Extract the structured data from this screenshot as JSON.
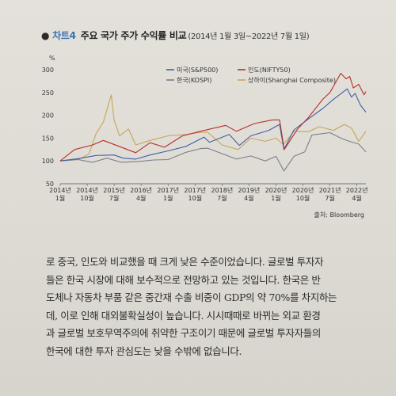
{
  "caption": {
    "bullet": "●",
    "number": "차트4",
    "title": "주요 국가 주가 수익률 비교",
    "period": "(2014년 1월 3일~2022년 7월 1일)"
  },
  "source": "출처: Bloomberg",
  "body_lines": [
    "로 중국, 인도와 비교했을 때 크게 낮은 수준이었습니다. 글로벌 투자자",
    "들은 한국 시장에 대해 보수적으로 전망하고 있는 것입니다. 한국은 반",
    "도체나 자동차 부품 같은 중간재 수출 비중이 GDP의 약 70%를 차지하는",
    "데, 이로 인해 대외불확실성이 높습니다. 시시때때로 바뀌는 외교 환경",
    "과 글로벌 보호무역주의에 취약한 구조이기 때문에 글로벌 투자자들의",
    "한국에 대한 투자 관심도는 낮을 수밖에 없습니다."
  ],
  "chart_data": {
    "type": "line",
    "title": "주요 국가 주가 수익률 비교",
    "ylabel": "%",
    "ylim": [
      50,
      300
    ],
    "yticks": [
      50,
      100,
      150,
      200,
      250,
      300
    ],
    "xlim": [
      2014.0,
      2022.5
    ],
    "xticks": [
      {
        "x": 2014.0,
        "line1": "2014년",
        "line2": "1월"
      },
      {
        "x": 2014.75,
        "line1": "2014년",
        "line2": "10월"
      },
      {
        "x": 2015.5,
        "line1": "2015년",
        "line2": "7월"
      },
      {
        "x": 2016.25,
        "line1": "2016년",
        "line2": "4월"
      },
      {
        "x": 2017.0,
        "line1": "2017년",
        "line2": "1월"
      },
      {
        "x": 2017.75,
        "line1": "2017년",
        "line2": "10월"
      },
      {
        "x": 2018.5,
        "line1": "2018년",
        "line2": "7월"
      },
      {
        "x": 2019.25,
        "line1": "2019년",
        "line2": "4월"
      },
      {
        "x": 2020.0,
        "line1": "2020년",
        "line2": "1월"
      },
      {
        "x": 2020.75,
        "line1": "2020년",
        "line2": "10월"
      },
      {
        "x": 2021.5,
        "line1": "2021년",
        "line2": "7월"
      },
      {
        "x": 2022.25,
        "line1": "2022년",
        "line2": "4월"
      }
    ],
    "grid": false,
    "legend_position": "top",
    "series": [
      {
        "name": "미국(S&P500)",
        "color": "#3f5fa8",
        "points": [
          [
            2014.0,
            100
          ],
          [
            2014.5,
            105
          ],
          [
            2015.0,
            112
          ],
          [
            2015.5,
            113
          ],
          [
            2015.75,
            106
          ],
          [
            2016.1,
            104
          ],
          [
            2016.5,
            113
          ],
          [
            2017.0,
            122
          ],
          [
            2017.5,
            132
          ],
          [
            2018.0,
            152
          ],
          [
            2018.15,
            141
          ],
          [
            2018.7,
            158
          ],
          [
            2018.98,
            134
          ],
          [
            2019.3,
            155
          ],
          [
            2019.8,
            167
          ],
          [
            2020.1,
            180
          ],
          [
            2020.22,
            125
          ],
          [
            2020.5,
            168
          ],
          [
            2020.9,
            192
          ],
          [
            2021.3,
            215
          ],
          [
            2021.6,
            235
          ],
          [
            2021.98,
            258
          ],
          [
            2022.1,
            240
          ],
          [
            2022.2,
            248
          ],
          [
            2022.35,
            222
          ],
          [
            2022.5,
            207
          ]
        ]
      },
      {
        "name": "인도(NIFTY50)",
        "color": "#b8302e",
        "points": [
          [
            2014.0,
            100
          ],
          [
            2014.4,
            125
          ],
          [
            2014.9,
            135
          ],
          [
            2015.2,
            145
          ],
          [
            2015.6,
            133
          ],
          [
            2016.1,
            118
          ],
          [
            2016.5,
            140
          ],
          [
            2016.9,
            130
          ],
          [
            2017.4,
            155
          ],
          [
            2017.9,
            165
          ],
          [
            2018.6,
            178
          ],
          [
            2018.9,
            165
          ],
          [
            2019.4,
            182
          ],
          [
            2019.9,
            190
          ],
          [
            2020.1,
            190
          ],
          [
            2020.23,
            125
          ],
          [
            2020.6,
            170
          ],
          [
            2020.9,
            195
          ],
          [
            2021.3,
            235
          ],
          [
            2021.5,
            250
          ],
          [
            2021.8,
            292
          ],
          [
            2021.95,
            280
          ],
          [
            2022.05,
            285
          ],
          [
            2022.15,
            260
          ],
          [
            2022.3,
            268
          ],
          [
            2022.45,
            245
          ],
          [
            2022.5,
            252
          ]
        ]
      },
      {
        "name": "한국(KOSPI)",
        "color": "#7b7f8a",
        "points": [
          [
            2014.0,
            100
          ],
          [
            2014.5,
            103
          ],
          [
            2014.9,
            97
          ],
          [
            2015.3,
            106
          ],
          [
            2015.7,
            97
          ],
          [
            2016.2,
            99
          ],
          [
            2016.6,
            102
          ],
          [
            2017.0,
            103
          ],
          [
            2017.5,
            119
          ],
          [
            2017.9,
            127
          ],
          [
            2018.1,
            128
          ],
          [
            2018.5,
            116
          ],
          [
            2018.9,
            104
          ],
          [
            2019.3,
            111
          ],
          [
            2019.7,
            100
          ],
          [
            2020.0,
            110
          ],
          [
            2020.22,
            78
          ],
          [
            2020.5,
            110
          ],
          [
            2020.8,
            120
          ],
          [
            2021.0,
            157
          ],
          [
            2021.5,
            162
          ],
          [
            2021.8,
            150
          ],
          [
            2022.0,
            144
          ],
          [
            2022.3,
            137
          ],
          [
            2022.5,
            120
          ]
        ]
      },
      {
        "name": "상하이(Shanghai Composite)",
        "color": "#c9a55a",
        "points": [
          [
            2014.0,
            100
          ],
          [
            2014.5,
            103
          ],
          [
            2014.8,
            115
          ],
          [
            2015.0,
            160
          ],
          [
            2015.2,
            185
          ],
          [
            2015.42,
            245
          ],
          [
            2015.5,
            190
          ],
          [
            2015.65,
            155
          ],
          [
            2015.9,
            170
          ],
          [
            2016.1,
            135
          ],
          [
            2016.5,
            145
          ],
          [
            2017.0,
            155
          ],
          [
            2017.5,
            158
          ],
          [
            2017.9,
            163
          ],
          [
            2018.1,
            163
          ],
          [
            2018.5,
            135
          ],
          [
            2018.95,
            125
          ],
          [
            2019.3,
            150
          ],
          [
            2019.7,
            143
          ],
          [
            2020.0,
            150
          ],
          [
            2020.2,
            136
          ],
          [
            2020.5,
            165
          ],
          [
            2020.9,
            164
          ],
          [
            2021.2,
            175
          ],
          [
            2021.6,
            167
          ],
          [
            2021.9,
            180
          ],
          [
            2022.1,
            172
          ],
          [
            2022.3,
            143
          ],
          [
            2022.5,
            165
          ]
        ]
      }
    ]
  }
}
